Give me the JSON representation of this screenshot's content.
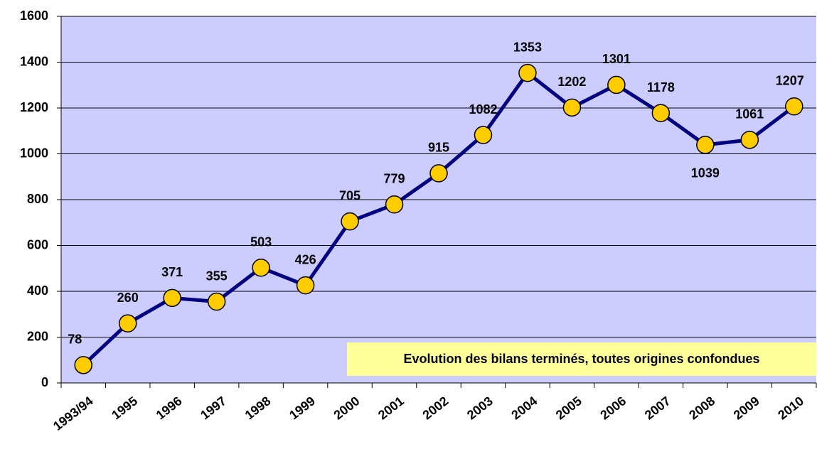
{
  "chart_data": {
    "type": "line",
    "categories": [
      "1993/94",
      "1995",
      "1996",
      "1997",
      "1998",
      "1999",
      "2000",
      "2001",
      "2002",
      "2003",
      "2004",
      "2005",
      "2006",
      "2007",
      "2008",
      "2009",
      "2010"
    ],
    "values": [
      78,
      260,
      371,
      355,
      503,
      426,
      705,
      779,
      915,
      1082,
      1353,
      1202,
      1301,
      1178,
      1039,
      1061,
      1207
    ],
    "color": "#000080",
    "marker_color": "#ffcc00",
    "background": "#ccccff",
    "ylim": [
      0,
      1600
    ],
    "yticks": [
      0,
      200,
      400,
      600,
      800,
      1000,
      1200,
      1400,
      1600
    ],
    "grid": true,
    "annotation": "Evolution des bilans terminés, toutes origines confondues"
  }
}
